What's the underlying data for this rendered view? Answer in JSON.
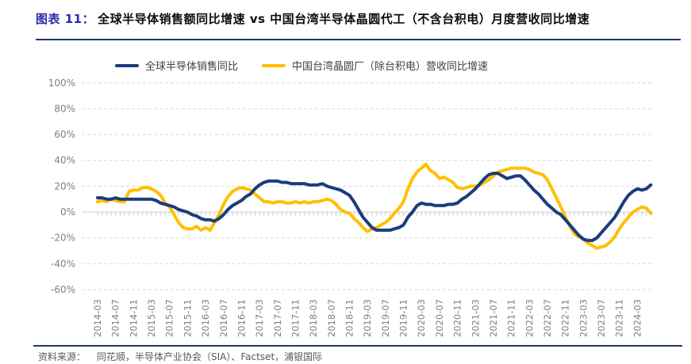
{
  "header": {
    "figure_label": "图表 11：",
    "title": "全球半导体销售额同比增速 vs 中国台湾半导体晶圆代工（不含台积电）月度营收同比增速"
  },
  "legend": [
    {
      "label": "全球半导体销售同比",
      "color": "#1b3c7e"
    },
    {
      "label": "中国台湾晶圆厂（除台积电）营收同比增速",
      "color": "#ffc000"
    }
  ],
  "footer": {
    "source_label": "资料来源：",
    "source_text": "同花顺，半导体产业协会（SIA）、Factset，浦银国际"
  },
  "chart_data": {
    "type": "line",
    "title": "全球半导体销售额同比增速 vs 中国台湾半导体晶圆代工（不含台积电）月度营收同比增速",
    "x_start": "2014-03",
    "x_frequency": "monthly",
    "x_tick_labels": [
      "2014-03",
      "2014-07",
      "2014-11",
      "2015-03",
      "2015-07",
      "2015-11",
      "2016-03",
      "2016-07",
      "2016-11",
      "2017-03",
      "2017-07",
      "2017-11",
      "2018-03",
      "2018-07",
      "2018-11",
      "2019-03",
      "2019-07",
      "2019-11",
      "2020-03",
      "2020-07",
      "2020-11",
      "2021-03",
      "2021-07",
      "2021-11",
      "2022-03",
      "2022-07",
      "2022-11",
      "2023-03",
      "2023-07",
      "2023-11",
      "2024-03"
    ],
    "x_tick_step_months": 4,
    "y_ticks": [
      100,
      80,
      60,
      40,
      20,
      0,
      -20,
      -40,
      -60
    ],
    "y_unit": "%",
    "ylim": [
      -60,
      100
    ],
    "grid": "dashed-horizontal",
    "legend_position": "top",
    "series": [
      {
        "name": "全球半导体销售同比",
        "color": "#1b3c7e",
        "values": [
          11,
          11,
          10,
          10,
          11,
          10,
          10,
          10,
          10,
          10,
          10,
          10,
          10,
          9,
          7,
          6,
          5,
          4,
          2,
          1,
          0,
          -2,
          -3,
          -5,
          -6,
          -6,
          -7,
          -5,
          -2,
          2,
          5,
          7,
          9,
          12,
          14,
          18,
          21,
          23,
          24,
          24,
          24,
          23,
          23,
          22,
          22,
          22,
          22,
          21,
          21,
          21,
          22,
          20,
          19,
          18,
          17,
          15,
          13,
          8,
          2,
          -4,
          -8,
          -12,
          -14,
          -14,
          -14,
          -14,
          -13,
          -12,
          -10,
          -4,
          0,
          5,
          7,
          6,
          6,
          5,
          5,
          5,
          6,
          6,
          7,
          10,
          12,
          15,
          18,
          22,
          26,
          29,
          30,
          30,
          28,
          26,
          27,
          28,
          28,
          25,
          21,
          17,
          14,
          10,
          6,
          3,
          0,
          -2,
          -6,
          -10,
          -14,
          -18,
          -21,
          -22,
          -22,
          -20,
          -16,
          -12,
          -8,
          -4,
          2,
          8,
          13,
          16,
          18,
          17,
          18,
          21
        ]
      },
      {
        "name": "中国台湾晶圆厂（除台积电）营收同比增速",
        "color": "#ffc000",
        "values": [
          8,
          9,
          8,
          10,
          9,
          8,
          8,
          16,
          17,
          17,
          19,
          19,
          18,
          16,
          13,
          7,
          4,
          -2,
          -8,
          -12,
          -13,
          -13,
          -11,
          -14,
          -12,
          -14,
          -8,
          -2,
          6,
          12,
          16,
          18,
          19,
          18,
          17,
          14,
          11,
          8,
          8,
          7,
          8,
          8,
          7,
          7,
          8,
          7,
          8,
          7,
          8,
          8,
          9,
          10,
          9,
          6,
          2,
          0,
          -1,
          -5,
          -8,
          -12,
          -15,
          -13,
          -12,
          -10,
          -8,
          -5,
          -1,
          3,
          8,
          18,
          26,
          31,
          34,
          37,
          32,
          30,
          26,
          27,
          25,
          23,
          19,
          18,
          19,
          20,
          20,
          21,
          23,
          25,
          28,
          31,
          32,
          33,
          34,
          34,
          34,
          34,
          33,
          31,
          30,
          29,
          25,
          18,
          11,
          4,
          -4,
          -11,
          -17,
          -19,
          -21,
          -24,
          -26,
          -28,
          -27,
          -26,
          -23,
          -19,
          -13,
          -8,
          -4,
          0,
          2,
          4,
          3,
          -1
        ]
      }
    ]
  }
}
